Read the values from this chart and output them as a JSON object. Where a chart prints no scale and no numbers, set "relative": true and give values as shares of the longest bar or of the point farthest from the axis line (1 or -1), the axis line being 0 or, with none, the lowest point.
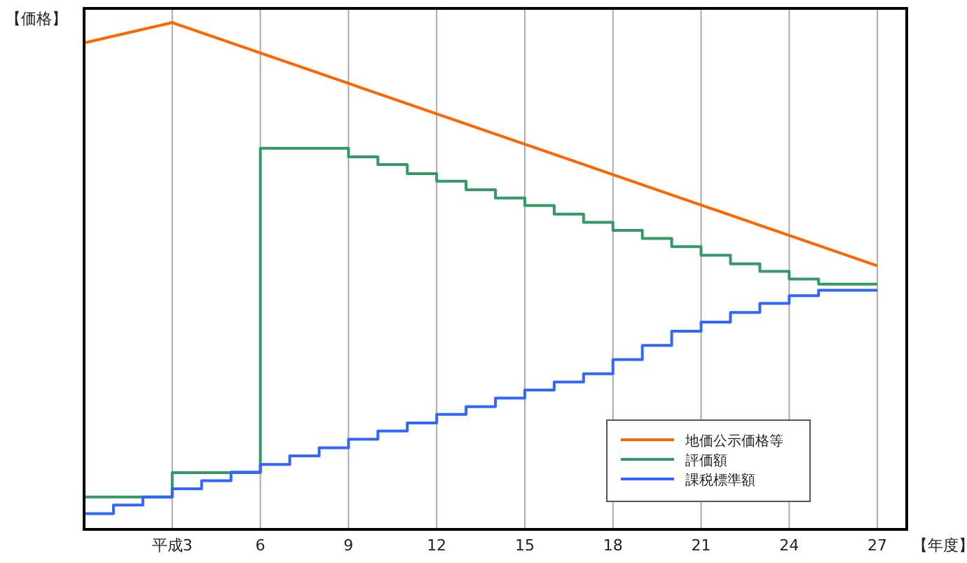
{
  "chart_data": {
    "type": "line",
    "relative": true,
    "ylabel": "【価格】",
    "xlabel": "【年度】",
    "xlim": [
      0,
      28
    ],
    "xticks": [
      {
        "value": 3,
        "label": "平成3"
      },
      6,
      9,
      12,
      15,
      18,
      21,
      24,
      27
    ],
    "grid": "x",
    "legend": "bottom right",
    "series": [
      {
        "name": "地価公示価格等",
        "color": "#ff6600",
        "x": [
          0,
          3,
          27
        ],
        "values": [
          0.96,
          1,
          0.52
        ]
      },
      {
        "name": "評価額",
        "type": "step",
        "color": "#339966",
        "x": [
          0,
          3,
          6,
          9,
          10,
          11,
          12,
          13,
          14,
          15,
          16,
          17,
          18,
          19,
          20,
          21,
          22,
          23,
          24,
          25,
          27
        ],
        "values": [
          0.064,
          0.112,
          0.752,
          0.735,
          0.72,
          0.702,
          0.687,
          0.67,
          0.654,
          0.639,
          0.622,
          0.606,
          0.59,
          0.574,
          0.558,
          0.541,
          0.524,
          0.509,
          0.494,
          0.484,
          0.484
        ]
      },
      {
        "name": "課税標準額",
        "type": "step",
        "color": "#3366ff",
        "x": [
          0,
          1,
          2,
          3,
          4,
          5,
          6,
          7,
          8,
          9,
          10,
          11,
          12,
          13,
          14,
          15,
          16,
          17,
          18,
          19,
          20,
          21,
          22,
          23,
          24,
          25,
          27
        ],
        "values": [
          0.031,
          0.048,
          0.064,
          0.08,
          0.096,
          0.113,
          0.128,
          0.145,
          0.161,
          0.178,
          0.194,
          0.21,
          0.227,
          0.242,
          0.259,
          0.275,
          0.291,
          0.307,
          0.335,
          0.363,
          0.391,
          0.409,
          0.428,
          0.446,
          0.461,
          0.472,
          0.472
        ]
      }
    ]
  }
}
